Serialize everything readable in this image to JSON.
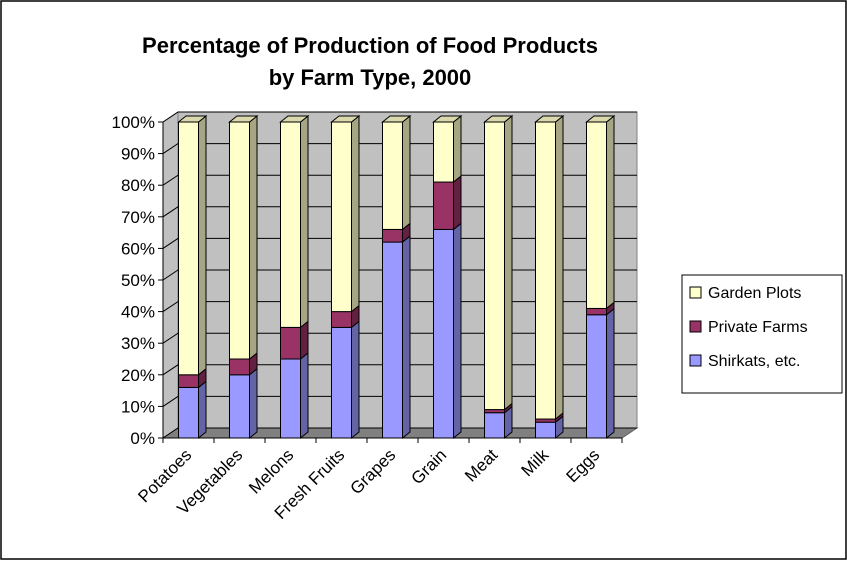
{
  "chart_data": {
    "type": "bar",
    "stacked": true,
    "percent_stacked": true,
    "three_d": true,
    "title": [
      "Percentage of Production of Food Products",
      "by Farm Type, 2000"
    ],
    "xlabel": "",
    "ylabel": "",
    "ylim": [
      0,
      100
    ],
    "y_ticks": [
      "0%",
      "10%",
      "20%",
      "30%",
      "40%",
      "50%",
      "60%",
      "70%",
      "80%",
      "90%",
      "100%"
    ],
    "grid": true,
    "legend_position": "right",
    "categories": [
      "Potatoes",
      "Vegetables",
      "Melons",
      "Fresh Fruits",
      "Grapes",
      "Grain",
      "Meat",
      "Milk",
      "Eggs"
    ],
    "series": [
      {
        "name": "Shirkats, etc.",
        "color": "#9999ff",
        "values": [
          16,
          20,
          25,
          35,
          62,
          66,
          8,
          5,
          39
        ]
      },
      {
        "name": "Private Farms",
        "color": "#993366",
        "values": [
          4,
          5,
          10,
          5,
          4,
          15,
          1,
          1,
          2
        ]
      },
      {
        "name": "Garden Plots",
        "color": "#ffffcc",
        "values": [
          80,
          75,
          65,
          60,
          34,
          19,
          91,
          94,
          59
        ]
      }
    ],
    "legend_order": [
      "Garden Plots",
      "Private Farms",
      "Shirkats, etc."
    ]
  }
}
